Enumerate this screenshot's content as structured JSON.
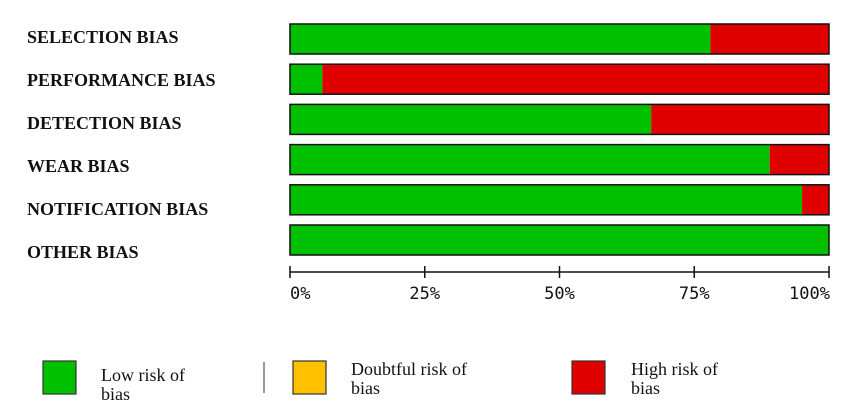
{
  "chart_data": {
    "type": "bar",
    "stacked": true,
    "orientation": "horizontal",
    "categories": [
      "SELECTION BIAS",
      "PERFORMANCE BIAS",
      "DETECTION BIAS",
      "WEAR BIAS",
      "NOTIFICATION BIAS",
      "OTHER BIAS"
    ],
    "series": [
      {
        "name": "Low risk of bias",
        "values": [
          78,
          6,
          67,
          89,
          95,
          100
        ],
        "color": "#00c000"
      },
      {
        "name": "Doubtful risk of bias",
        "values": [
          0,
          0,
          0,
          0,
          0,
          0
        ],
        "color": "#ffc000"
      },
      {
        "name": "High risk of bias",
        "values": [
          22,
          94,
          33,
          11,
          5,
          0
        ],
        "color": "#e00000"
      }
    ],
    "xlim": [
      0,
      100
    ],
    "xticks": [
      "0%",
      "25%",
      "50%",
      "75%",
      "100%"
    ],
    "xtick_values": [
      0,
      25,
      50,
      75,
      100
    ],
    "legend_placement": "bottom",
    "legend": [
      {
        "lines": [
          "Low risk of",
          "bias"
        ],
        "color": "#00c000"
      },
      {
        "lines": [
          "Doubtful risk of",
          "bias"
        ],
        "color": "#ffc000"
      },
      {
        "lines": [
          "High risk of",
          "bias"
        ],
        "color": "#e00000"
      }
    ]
  }
}
